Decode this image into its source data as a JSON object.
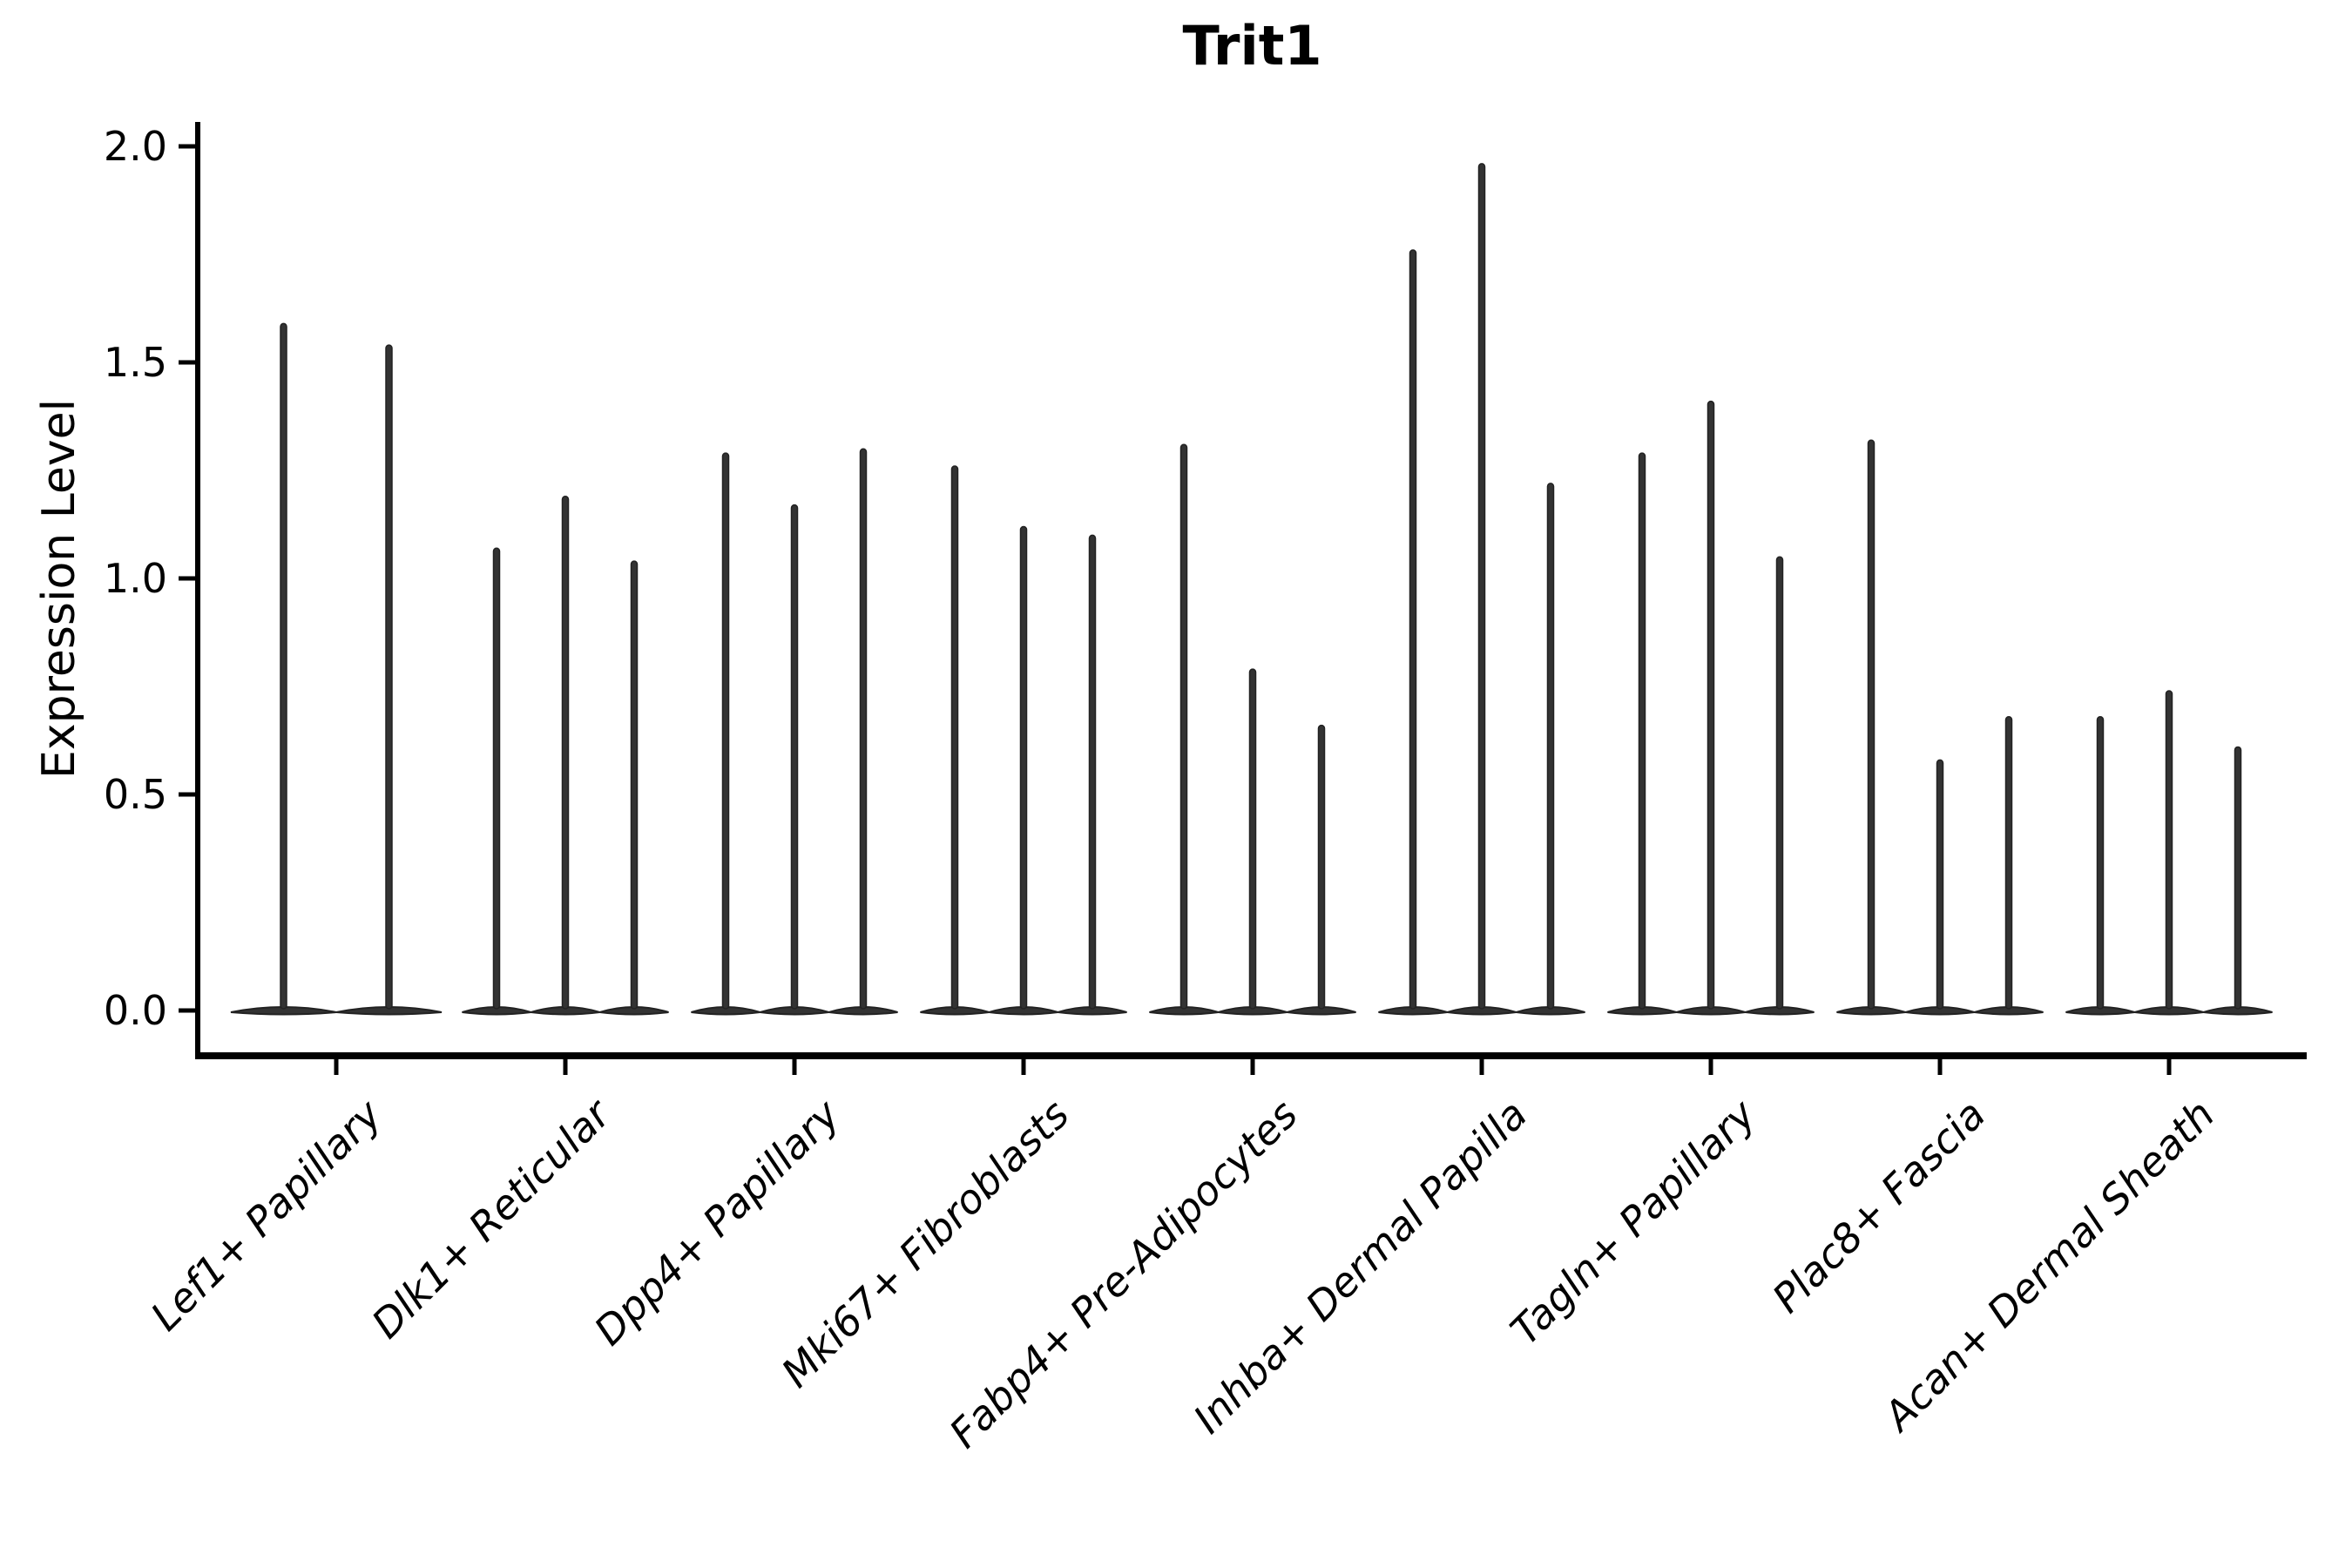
{
  "chart_data": {
    "type": "violin",
    "title": "Trit1",
    "xlabel": "",
    "ylabel": "Expression Level",
    "categories": [
      "Lef1+ Papillary",
      "Dlk1+ Reticular",
      "Dpp4+ Papillary",
      "Mki67+ Fibroblasts",
      "Fabp4+ Pre-Adipocytes",
      "Inhba+ Dermal Papilla",
      "Tagln+ Papillary",
      "Plac8+ Fascia",
      "Acan+ Dermal Sheath"
    ],
    "series": [
      {
        "category": "Lef1+ Papillary",
        "violin_max_values": [
          1.59,
          1.54
        ]
      },
      {
        "category": "Dlk1+ Reticular",
        "violin_max_values": [
          1.07,
          1.19,
          1.04
        ]
      },
      {
        "category": "Dpp4+ Papillary",
        "violin_max_values": [
          1.29,
          1.17,
          1.3
        ]
      },
      {
        "category": "Mki67+ Fibroblasts",
        "violin_max_values": [
          1.26,
          1.12,
          1.1
        ]
      },
      {
        "category": "Fabp4+ Pre-Adipocytes",
        "violin_max_values": [
          1.31,
          0.79,
          0.66
        ]
      },
      {
        "category": "Inhba+ Dermal Papilla",
        "violin_max_values": [
          1.76,
          1.96,
          1.22
        ]
      },
      {
        "category": "Tagln+ Papillary",
        "violin_max_values": [
          1.29,
          1.41,
          1.05
        ]
      },
      {
        "category": "Plac8+ Fascia",
        "violin_max_values": [
          1.32,
          0.58,
          0.68
        ]
      },
      {
        "category": "Acan+ Dermal Sheath",
        "violin_max_values": [
          0.68,
          0.74,
          0.61
        ]
      }
    ],
    "ytick_labels": [
      "0.0",
      "0.5",
      "1.0",
      "1.5",
      "2.0"
    ],
    "ytick_values": [
      0.0,
      0.5,
      1.0,
      1.5,
      2.0
    ],
    "ylim": [
      -0.1,
      2.06
    ],
    "grid": false,
    "legend": "none",
    "violin_note": "density concentrated at 0 (flat base bump) with a thin spike up to the max expression value",
    "style": {
      "background": "#ffffff",
      "ink": "#000000",
      "violin_fill": "#333333",
      "violin_edge": "#222222",
      "title_bold": true,
      "xtick_rotation_deg": 45,
      "xtick_italic": true
    }
  }
}
